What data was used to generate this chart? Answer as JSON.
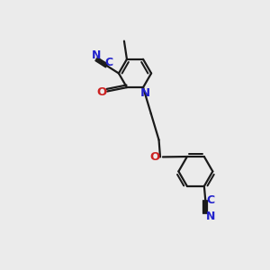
{
  "background_color": "#EBEBEB",
  "bond_color": "#1a1a1a",
  "nitrogen_color": "#2222CC",
  "oxygen_color": "#CC2222",
  "line_width": 1.6,
  "figsize": [
    3.0,
    3.0
  ],
  "dpi": 100,
  "xlim": [
    0,
    10
  ],
  "ylim": [
    0,
    10
  ]
}
